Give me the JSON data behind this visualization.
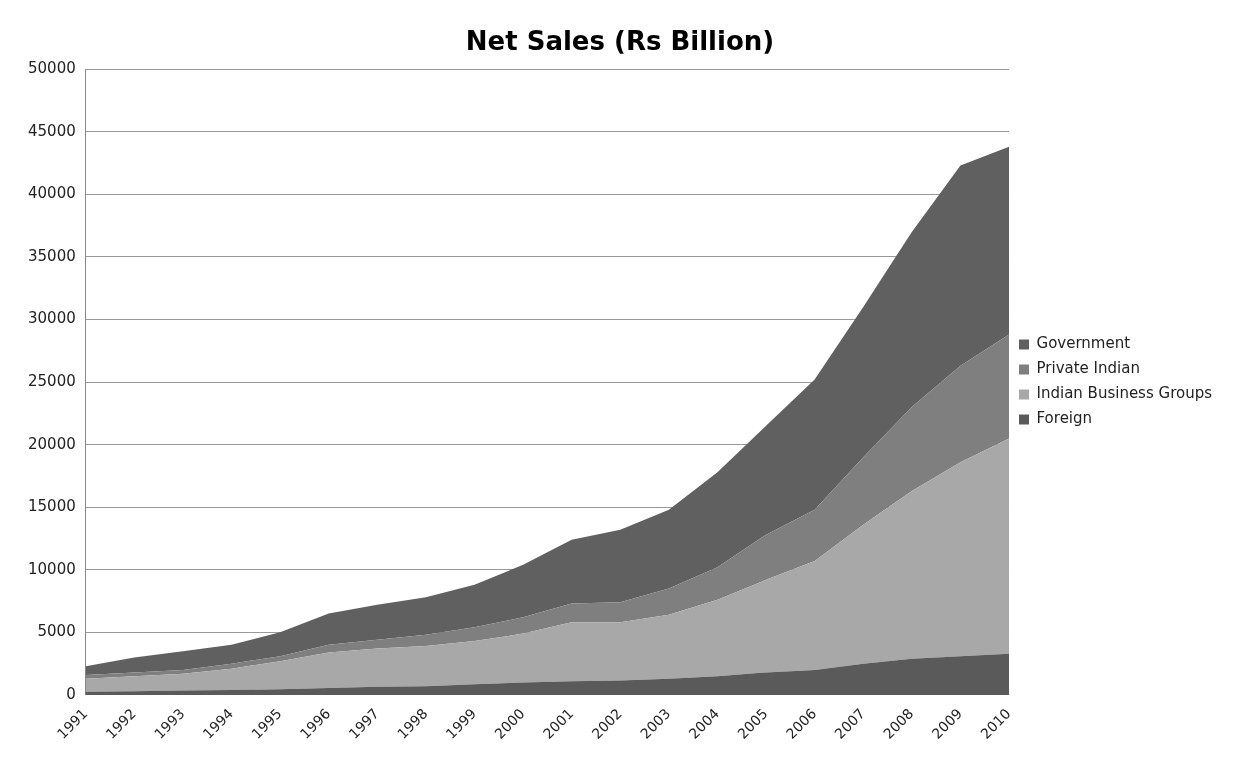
{
  "chart_data": {
    "type": "area",
    "title": "Net Sales (Rs Billion)",
    "stacked": true,
    "legend": "right",
    "grid": "y",
    "categories": [
      "1991",
      "1992",
      "1993",
      "1994",
      "1995",
      "1996",
      "1997",
      "1998",
      "1999",
      "2000",
      "2001",
      "2002",
      "2003",
      "2004",
      "2005",
      "2006",
      "2007",
      "2008",
      "2009",
      "2010"
    ],
    "ylim": [
      0,
      50000
    ],
    "yticks": [
      0,
      5000,
      10000,
      15000,
      20000,
      25000,
      30000,
      35000,
      40000,
      45000,
      50000
    ],
    "series": [
      {
        "name": "Foreign",
        "color": "#5a5a5a",
        "values": [
          250,
          300,
          350,
          400,
          450,
          550,
          650,
          700,
          850,
          1000,
          1100,
          1150,
          1300,
          1500,
          1800,
          2000,
          2500,
          2900,
          3100,
          3300
        ]
      },
      {
        "name": "Indian Business Groups",
        "color": "#a8a8a8",
        "values": [
          1050,
          1200,
          1350,
          1700,
          2250,
          2850,
          3050,
          3200,
          3450,
          3900,
          4700,
          4650,
          5100,
          6100,
          7400,
          8700,
          11100,
          13400,
          15500,
          17200
        ]
      },
      {
        "name": "Private Indian",
        "color": "#7f7f7f",
        "values": [
          300,
          300,
          300,
          400,
          400,
          600,
          700,
          900,
          1100,
          1300,
          1500,
          1600,
          2100,
          2600,
          3600,
          4100,
          5400,
          6700,
          7700,
          8300
        ]
      },
      {
        "name": "Government",
        "color": "#606060",
        "values": [
          700,
          1200,
          1500,
          1500,
          1900,
          2500,
          2800,
          3000,
          3400,
          4200,
          5100,
          5800,
          6300,
          7600,
          8700,
          10400,
          12000,
          14000,
          16000,
          15000
        ]
      }
    ]
  }
}
